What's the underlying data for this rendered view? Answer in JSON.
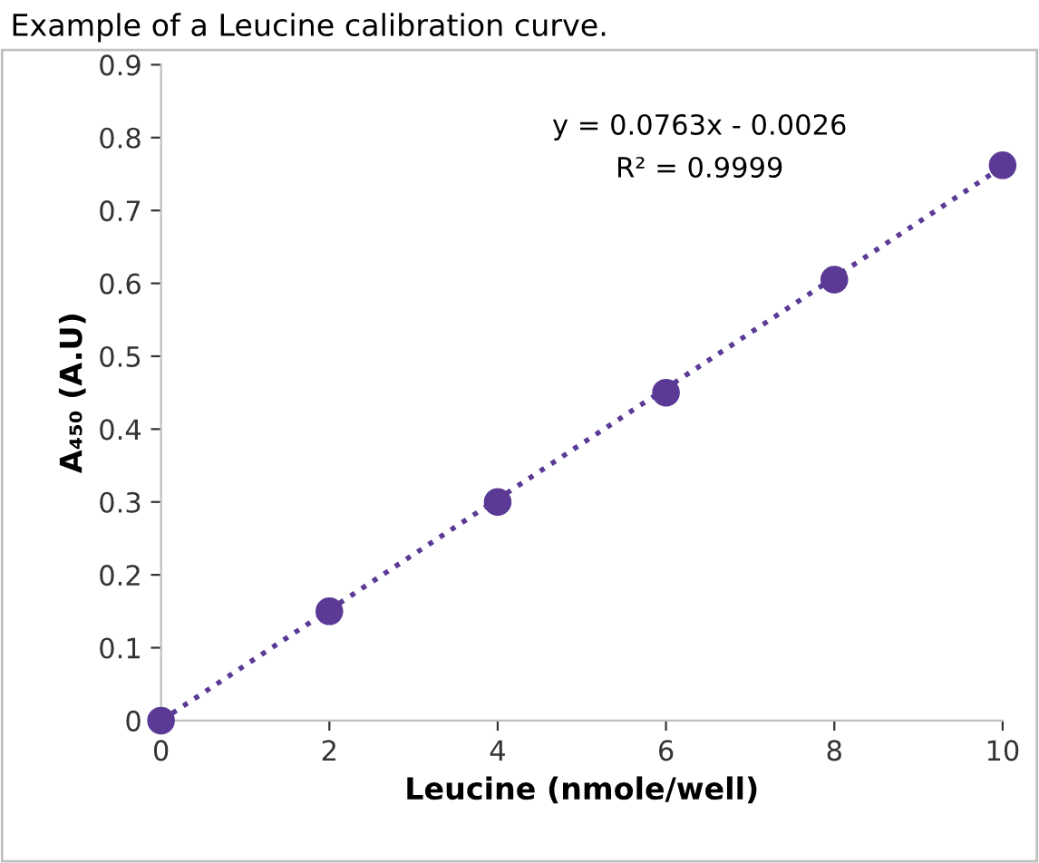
{
  "chart_data": {
    "type": "scatter",
    "title": "Example of a Leucine calibration curve.",
    "xlabel": "Leucine (nmole/well)",
    "ylabel": "A₄₅₀ (A.U)",
    "annotations": [
      "y = 0.0763x - 0.0026",
      "R² = 0.9999"
    ],
    "x": [
      0,
      2,
      4,
      6,
      8,
      10
    ],
    "series": [
      {
        "color": "#5b3a96",
        "marker": "circle",
        "values": [
          0,
          0.15,
          0.3,
          0.45,
          0.605,
          0.762
        ]
      },
      {
        "type": "line",
        "color": "#5b3a96",
        "line_style": "dotted",
        "marker": "none",
        "x": [
          0,
          10
        ],
        "values": [
          0,
          0.76
        ]
      }
    ],
    "xlim": [
      0,
      10
    ],
    "xticks": [
      0,
      2,
      4,
      6,
      8,
      10
    ],
    "ylim": [
      0,
      0.9
    ],
    "yticks": [
      0,
      0.1,
      0.2,
      0.3,
      0.4,
      0.5,
      0.6,
      0.7,
      0.8,
      0.9
    ],
    "grid": false,
    "legend": false
  }
}
